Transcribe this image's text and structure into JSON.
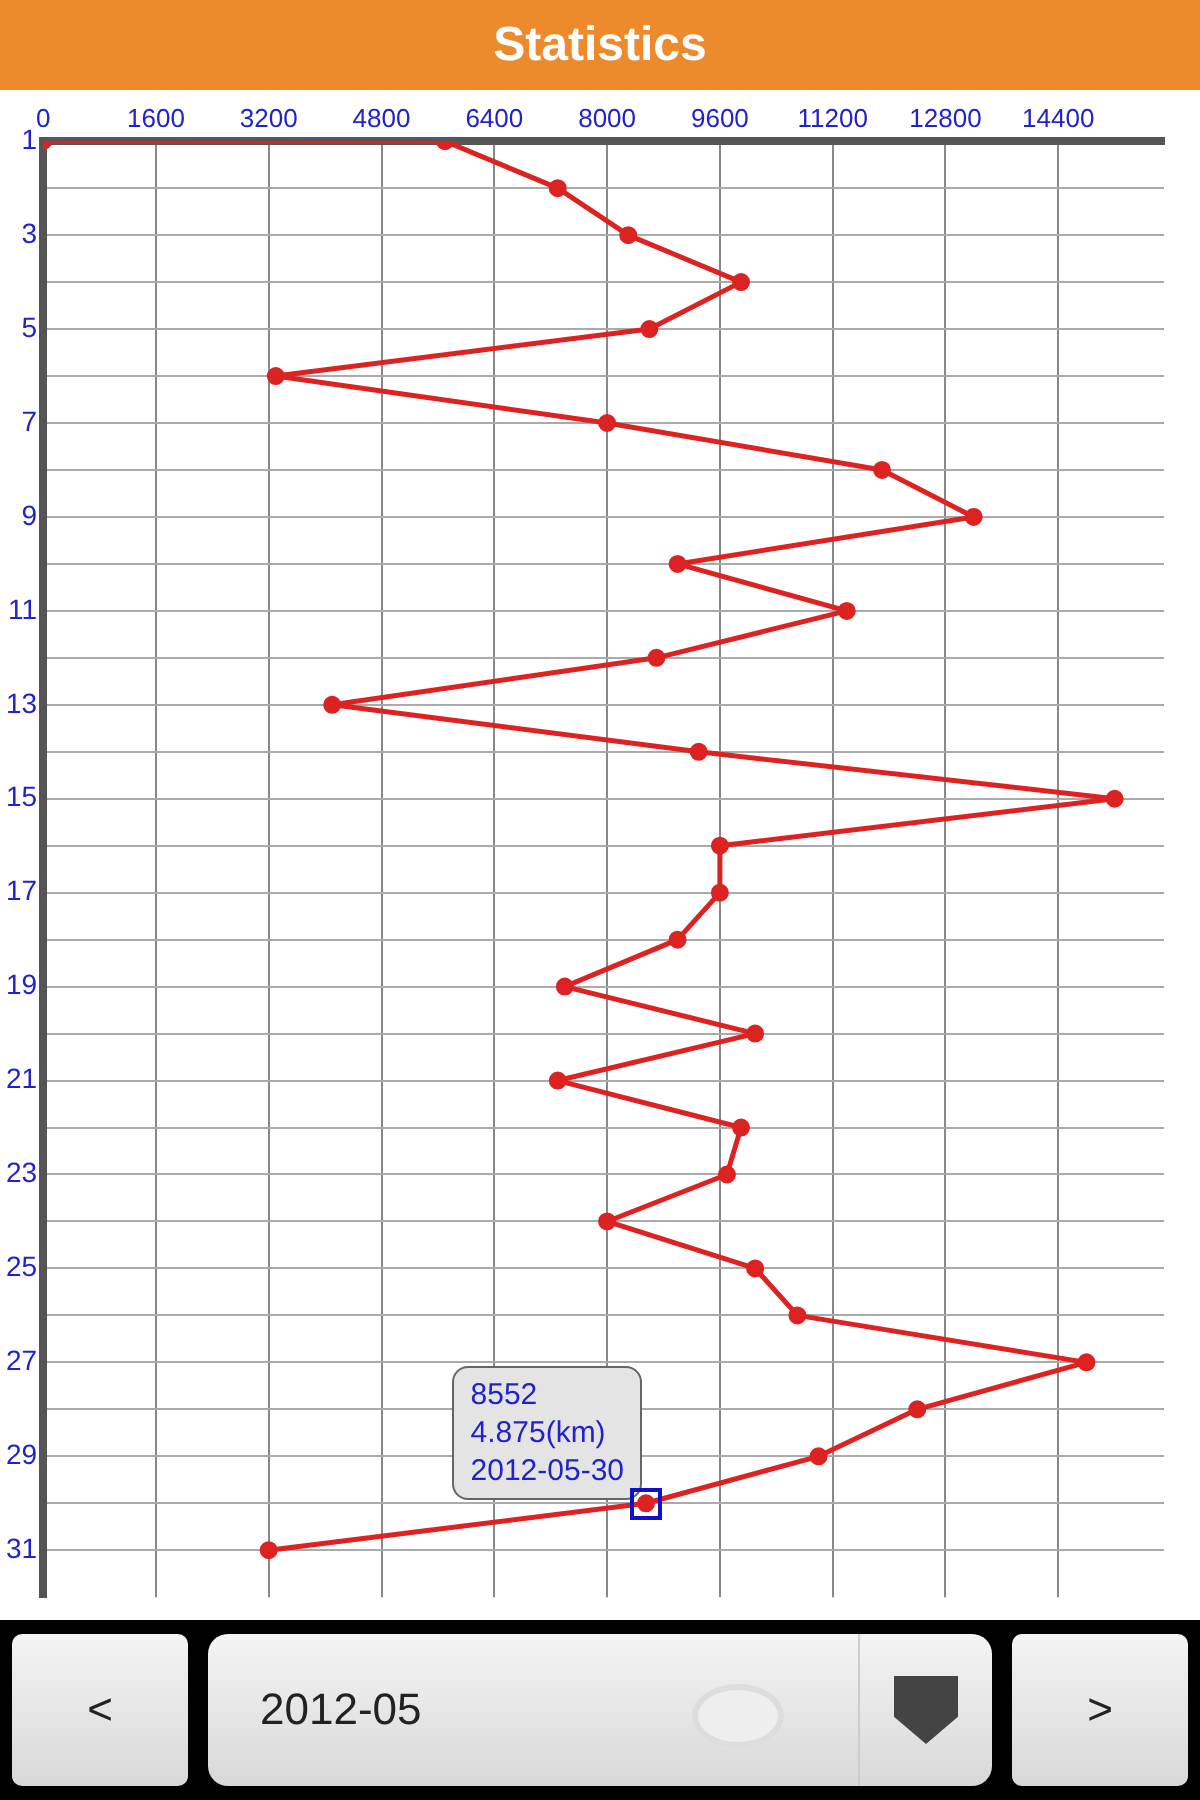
{
  "chart_data": {
    "type": "line",
    "title": "Statistics",
    "orientation": "horizontal",
    "x": [
      1,
      1,
      2,
      3,
      4,
      5,
      6,
      7,
      8,
      9,
      10,
      11,
      12,
      13,
      14,
      15,
      16,
      17,
      18,
      19,
      20,
      21,
      22,
      23,
      24,
      25,
      26,
      27,
      28,
      29,
      30,
      31
    ],
    "series": [
      {
        "color": "#dd2222",
        "values": [
          0,
          5700,
          7300,
          8300,
          9900,
          8600,
          3300,
          8000,
          11900,
          13200,
          9000,
          11400,
          8700,
          4100,
          9300,
          15200,
          9600,
          9600,
          9000,
          7400,
          10100,
          7300,
          9900,
          9700,
          8000,
          10100,
          10700,
          14800,
          12400,
          11000,
          8552,
          3200
        ]
      }
    ],
    "xlim": [
      0,
      15900
    ],
    "xticks": [
      0,
      1600,
      3200,
      4800,
      6400,
      8000,
      9600,
      11200,
      12800,
      14400
    ],
    "ylim": [
      32,
      1
    ],
    "yticks": [
      1,
      {
        "value": 2,
        "label": null
      },
      3,
      {
        "value": 4,
        "label": null
      },
      5,
      {
        "value": 6,
        "label": null
      },
      7,
      {
        "value": 8,
        "label": null
      },
      9,
      {
        "value": 10,
        "label": null
      },
      11,
      {
        "value": 12,
        "label": null
      },
      13,
      {
        "value": 14,
        "label": null
      },
      15,
      {
        "value": 16,
        "label": null
      },
      17,
      {
        "value": 18,
        "label": null
      },
      19,
      {
        "value": 20,
        "label": null
      },
      21,
      {
        "value": 22,
        "label": null
      },
      23,
      {
        "value": 24,
        "label": null
      },
      25,
      {
        "value": 26,
        "label": null
      },
      27,
      {
        "value": 28,
        "label": null
      },
      29,
      {
        "value": 30,
        "label": null
      },
      31
    ],
    "grid": true,
    "marker": "circle",
    "line_style": "solid",
    "legend": false,
    "annotations": [
      {
        "text": "8552\n4.875(km)\n2012-05-30",
        "x": 8552,
        "y": 30
      },
      "<",
      "2012-05",
      ">"
    ]
  }
}
